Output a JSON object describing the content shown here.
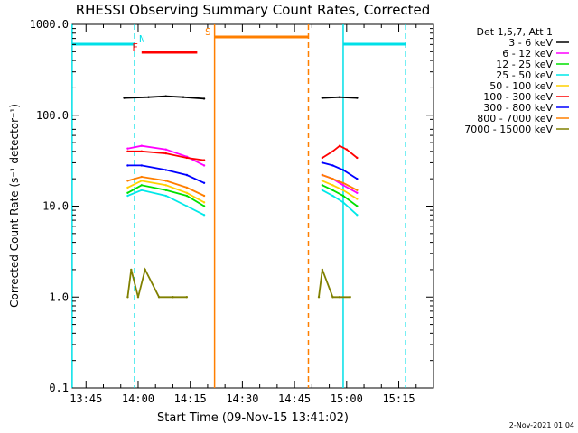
{
  "chart_data": {
    "type": "line",
    "title": "RHESSI Observing Summary Count Rates, Corrected",
    "xlabel": "Start Time (09-Nov-15 13:41:02)",
    "ylabel": "Corrected Count Rate (s⁻¹ detector⁻¹)",
    "y_scale": "log",
    "ylim": [
      0.1,
      1000
    ],
    "xlim": [
      "13:41:02",
      "15:25:00"
    ],
    "x_ticks": [
      "13:45",
      "14:00",
      "14:15",
      "14:30",
      "14:45",
      "15:00",
      "15:15"
    ],
    "y_ticks": [
      "0.1",
      "1.0",
      "10.0",
      "100.0",
      "1000.0"
    ],
    "grid": false,
    "legend_position": "right",
    "legend_header": "Det 1,5,7, Att 1",
    "timestamp": "2-Nov-2021 01:04",
    "flags": [
      {
        "label": "N",
        "color": "#00e0e8",
        "segments": [
          [
            "13:41",
            "13:59"
          ],
          [
            "14:59",
            "15:17"
          ]
        ]
      },
      {
        "label": "F",
        "color": "#ff0000",
        "segments": [
          [
            "14:01",
            "14:17"
          ]
        ]
      },
      {
        "label": "S",
        "color": "#ff7f00",
        "segments": [
          [
            "14:22",
            "14:49"
          ]
        ]
      }
    ],
    "markers": [
      {
        "time": "13:41",
        "color": "#00e0e8",
        "style": "solid"
      },
      {
        "time": "13:59",
        "color": "#00e0e8",
        "style": "dashed"
      },
      {
        "time": "14:22",
        "color": "#ff7f00",
        "style": "solid"
      },
      {
        "time": "14:49",
        "color": "#ff7f00",
        "style": "dashed"
      },
      {
        "time": "14:59",
        "color": "#00e0e8",
        "style": "solid"
      },
      {
        "time": "15:17",
        "color": "#00e0e8",
        "style": "dashed"
      }
    ],
    "series": [
      {
        "name": "3 - 6 keV",
        "color": "#000000",
        "segments": [
          {
            "x": [
              "13:56",
              "14:03",
              "14:08",
              "14:13",
              "14:19"
            ],
            "values": [
              155,
              158,
              162,
              158,
              152
            ]
          },
          {
            "x": [
              "14:53",
              "14:58",
              "15:03"
            ],
            "values": [
              155,
              158,
              155
            ]
          }
        ]
      },
      {
        "name": "6 - 12 keV",
        "color": "#ff00ff",
        "segments": [
          {
            "x": [
              "13:57",
              "14:01",
              "14:08",
              "14:14",
              "14:19"
            ],
            "values": [
              43,
              46,
              42,
              35,
              28
            ]
          },
          {
            "x": [
              "14:53",
              "14:56",
              "14:59",
              "15:03"
            ],
            "values": [
              22,
              20,
              17,
              14
            ]
          }
        ]
      },
      {
        "name": "12 - 25 keV",
        "color": "#00e000",
        "segments": [
          {
            "x": [
              "13:57",
              "14:01",
              "14:08",
              "14:14",
              "14:19"
            ],
            "values": [
              14,
              17,
              15,
              13,
              10
            ]
          },
          {
            "x": [
              "14:53",
              "14:56",
              "14:59",
              "15:03"
            ],
            "values": [
              17,
              15,
              13,
              10
            ]
          }
        ]
      },
      {
        "name": "25 - 50 keV",
        "color": "#00e8e8",
        "segments": [
          {
            "x": [
              "13:57",
              "14:01",
              "14:08",
              "14:14",
              "14:19"
            ],
            "values": [
              13,
              15,
              13,
              10,
              8
            ]
          },
          {
            "x": [
              "14:53",
              "14:56",
              "14:59",
              "15:03"
            ],
            "values": [
              15,
              13,
              11,
              8
            ]
          }
        ]
      },
      {
        "name": "50 - 100 keV",
        "color": "#ffd000",
        "segments": [
          {
            "x": [
              "13:57",
              "14:01",
              "14:08",
              "14:14",
              "14:19"
            ],
            "values": [
              16,
              19,
              17,
              14,
              11
            ]
          },
          {
            "x": [
              "14:53",
              "14:56",
              "14:59",
              "15:03"
            ],
            "values": [
              19,
              17,
              15,
              12
            ]
          }
        ]
      },
      {
        "name": "100 - 300 keV",
        "color": "#ff0000",
        "segments": [
          {
            "x": [
              "13:57",
              "14:01",
              "14:08",
              "14:14",
              "14:19"
            ],
            "values": [
              40,
              40,
              38,
              34,
              32
            ]
          },
          {
            "x": [
              "14:53",
              "14:56",
              "14:58",
              "15:00",
              "15:03"
            ],
            "values": [
              34,
              40,
              46,
              42,
              34
            ]
          }
        ]
      },
      {
        "name": "300 - 800 keV",
        "color": "#0000ff",
        "segments": [
          {
            "x": [
              "13:57",
              "14:01",
              "14:08",
              "14:14",
              "14:19"
            ],
            "values": [
              28,
              28,
              25,
              22,
              18
            ]
          },
          {
            "x": [
              "14:53",
              "14:56",
              "14:59",
              "15:03"
            ],
            "values": [
              30,
              28,
              25,
              20
            ]
          }
        ]
      },
      {
        "name": "800 - 7000 keV",
        "color": "#ff7f00",
        "segments": [
          {
            "x": [
              "13:57",
              "14:01",
              "14:08",
              "14:14",
              "14:19"
            ],
            "values": [
              19,
              21,
              19,
              16,
              13
            ]
          },
          {
            "x": [
              "14:53",
              "14:56",
              "14:59",
              "15:03"
            ],
            "values": [
              22,
              20,
              18,
              15
            ]
          }
        ]
      },
      {
        "name": "7000 - 15000 keV",
        "color": "#808000",
        "segments": [
          {
            "x": [
              "13:57",
              "13:58",
              "14:00",
              "14:02",
              "14:06",
              "14:10",
              "14:14"
            ],
            "values": [
              1,
              2,
              1,
              2,
              1,
              1,
              1
            ]
          },
          {
            "x": [
              "14:52",
              "14:53",
              "14:56",
              "14:58",
              "15:01"
            ],
            "values": [
              1,
              2,
              1,
              1,
              1
            ]
          }
        ]
      }
    ]
  }
}
